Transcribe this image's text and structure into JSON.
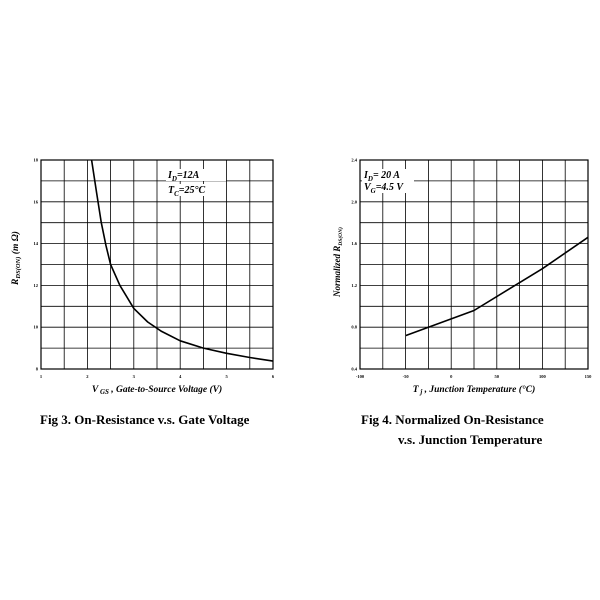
{
  "chart_data": [
    {
      "type": "line",
      "title": "Fig 3. On-Resistance  v.s. Gate Voltage",
      "xlabel_var": "V",
      "xlabel_sub": "GS",
      "xlabel_text": " , Gate-to-Source Voltage (V)",
      "ylabel_var": "R",
      "ylabel_sub": "DS(ON)",
      "ylabel_unit": " (m Ω)",
      "xlim": [
        1,
        6
      ],
      "ylim": [
        8,
        18
      ],
      "xticks": [
        "1",
        "2",
        "3",
        "4",
        "5",
        "6"
      ],
      "yticks": [
        "8",
        "10",
        "12",
        "14",
        "16",
        "18"
      ],
      "grid": true,
      "annotations": [
        {
          "var": "I",
          "sub": "D",
          "text": "=12A"
        },
        {
          "var": "T",
          "sub": "C",
          "text": "=25°C"
        }
      ],
      "series": [
        {
          "x": [
            2.09,
            2.2,
            2.3,
            2.4,
            2.5,
            2.7,
            3.0,
            3.3,
            3.6,
            4.0,
            4.5,
            5.0,
            5.5,
            6.0
          ],
          "values": [
            18.0,
            16.4,
            15.0,
            13.9,
            13.0,
            12.0,
            10.9,
            10.25,
            9.8,
            9.35,
            9.0,
            8.75,
            8.55,
            8.38
          ]
        }
      ]
    },
    {
      "type": "line",
      "title_line1": "Fig 4. Normalized On-Resistance",
      "title_line2": "v.s. Junction Temperature",
      "xlabel_var": "T",
      "xlabel_sub": "j",
      "xlabel_text": " , Junction Temperature (°C)",
      "ylabel_text": "Normalized R",
      "ylabel_sub": "DS(ON)",
      "xlim": [
        -100,
        150
      ],
      "ylim": [
        0.4,
        2.4
      ],
      "xticks": [
        "-100",
        "-50",
        "0",
        "50",
        "100",
        "150"
      ],
      "yticks": [
        "0.4",
        "0.8",
        "1.2",
        "1.6",
        "2.0",
        "2.4"
      ],
      "grid": true,
      "annotations": [
        {
          "var": "I",
          "sub": "D",
          "text": "= 20 A"
        },
        {
          "var": "V",
          "sub": "G",
          "text": "=4.5 V"
        }
      ],
      "series": [
        {
          "x": [
            -50,
            25,
            100,
            150
          ],
          "values": [
            0.72,
            0.96,
            1.36,
            1.66
          ]
        }
      ]
    }
  ]
}
